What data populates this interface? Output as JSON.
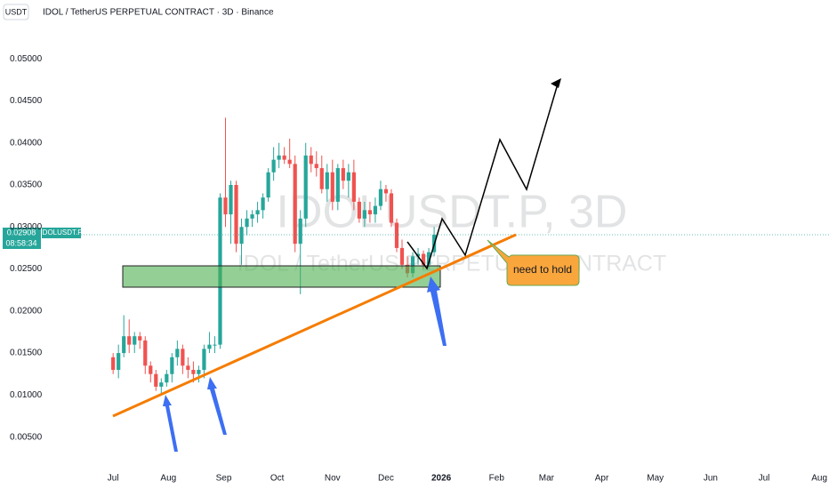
{
  "chart_data": {
    "type": "candlestick",
    "currency": "USDT",
    "title": "IDOL / TetherUS PERPETUAL CONTRACT · 3D · Binance",
    "watermark": "IDOLUSDT.P, 3D",
    "watermark_subtitle": "IDOL / TetherUS PERPETUAL CONTRACT",
    "symbol_label": "IDOLUSDT.P",
    "countdown": "08:58:34",
    "annotation": "need to hold",
    "up_color": "#26a69a",
    "down_color": "#ef5350",
    "x": [
      0,
      1,
      2,
      3,
      4,
      5,
      6,
      7,
      8,
      9,
      10,
      11,
      12,
      13,
      14,
      15,
      16,
      17,
      18,
      19,
      20,
      21,
      22,
      23,
      24,
      25,
      26,
      27,
      28,
      29,
      30,
      31,
      32,
      33,
      34,
      35,
      36,
      37,
      38,
      39,
      40,
      41,
      42,
      43,
      44,
      45,
      46,
      47,
      48,
      49,
      50,
      51,
      52,
      53,
      54,
      55,
      56,
      57,
      58,
      59,
      60
    ],
    "open": [
      0.0145,
      0.013,
      0.015,
      0.017,
      0.016,
      0.017,
      0.0165,
      0.0135,
      0.0125,
      0.011,
      0.0115,
      0.0125,
      0.0145,
      0.0155,
      0.0135,
      0.013,
      0.0125,
      0.013,
      0.0155,
      0.016,
      0.016,
      0.0335,
      0.0315,
      0.035,
      0.028,
      0.03,
      0.031,
      0.0315,
      0.032,
      0.0335,
      0.0365,
      0.038,
      0.0385,
      0.038,
      0.0375,
      0.028,
      0.031,
      0.0385,
      0.0375,
      0.037,
      0.0345,
      0.0365,
      0.033,
      0.037,
      0.0355,
      0.0365,
      0.033,
      0.031,
      0.032,
      0.0315,
      0.0325,
      0.0345,
      0.034,
      0.0305,
      0.0275,
      0.0255,
      0.0245,
      0.0265,
      0.0268,
      0.0255,
      0.027
    ],
    "high": [
      0.015,
      0.016,
      0.0195,
      0.019,
      0.0175,
      0.0175,
      0.017,
      0.014,
      0.013,
      0.012,
      0.013,
      0.015,
      0.0165,
      0.016,
      0.0145,
      0.014,
      0.0135,
      0.016,
      0.0175,
      0.017,
      0.034,
      0.043,
      0.0355,
      0.0355,
      0.031,
      0.032,
      0.032,
      0.033,
      0.034,
      0.037,
      0.0395,
      0.04,
      0.0395,
      0.0405,
      0.0385,
      0.032,
      0.04,
      0.0395,
      0.039,
      0.0385,
      0.0375,
      0.038,
      0.0375,
      0.038,
      0.0375,
      0.038,
      0.0335,
      0.033,
      0.033,
      0.0335,
      0.0355,
      0.035,
      0.0345,
      0.031,
      0.0285,
      0.0265,
      0.027,
      0.0275,
      0.0272,
      0.0275,
      0.03
    ],
    "low": [
      0.0125,
      0.012,
      0.0145,
      0.015,
      0.015,
      0.0155,
      0.0125,
      0.0115,
      0.0105,
      0.01,
      0.011,
      0.0115,
      0.0135,
      0.0125,
      0.012,
      0.0115,
      0.0115,
      0.012,
      0.015,
      0.015,
      0.0155,
      0.03,
      0.028,
      0.027,
      0.0255,
      0.029,
      0.03,
      0.0305,
      0.031,
      0.033,
      0.0355,
      0.037,
      0.0375,
      0.037,
      0.027,
      0.022,
      0.03,
      0.0365,
      0.036,
      0.034,
      0.033,
      0.032,
      0.032,
      0.0345,
      0.0335,
      0.032,
      0.0305,
      0.03,
      0.0305,
      0.0305,
      0.032,
      0.033,
      0.03,
      0.027,
      0.025,
      0.024,
      0.024,
      0.0255,
      0.025,
      0.025,
      0.0265
    ],
    "close": [
      0.013,
      0.015,
      0.017,
      0.016,
      0.017,
      0.0165,
      0.0135,
      0.0125,
      0.011,
      0.0115,
      0.0125,
      0.0145,
      0.0155,
      0.0135,
      0.013,
      0.0125,
      0.013,
      0.0155,
      0.016,
      0.016,
      0.0335,
      0.0315,
      0.035,
      0.028,
      0.03,
      0.031,
      0.0315,
      0.032,
      0.0335,
      0.0365,
      0.038,
      0.0385,
      0.038,
      0.0375,
      0.028,
      0.031,
      0.0385,
      0.0375,
      0.037,
      0.0345,
      0.0365,
      0.033,
      0.037,
      0.0355,
      0.0365,
      0.033,
      0.031,
      0.032,
      0.0315,
      0.0325,
      0.0345,
      0.034,
      0.0305,
      0.0275,
      0.0255,
      0.0245,
      0.0265,
      0.0268,
      0.0255,
      0.027,
      0.02908
    ],
    "xlim": [
      -11.5,
      133.8
    ],
    "xticks": [
      {
        "value": 0,
        "label": "Jul"
      },
      {
        "value": 10.33,
        "label": "Aug"
      },
      {
        "value": 20.67,
        "label": "Sep"
      },
      {
        "value": 30.67,
        "label": "Oct"
      },
      {
        "value": 41,
        "label": "Nov"
      },
      {
        "value": 51,
        "label": "Dec"
      },
      {
        "value": 61.33,
        "label": "2026"
      },
      {
        "value": 71.67,
        "label": "Feb"
      },
      {
        "value": 81,
        "label": "Mar"
      },
      {
        "value": 91.33,
        "label": "Apr"
      },
      {
        "value": 101.33,
        "label": "May"
      },
      {
        "value": 111.67,
        "label": "Jun"
      },
      {
        "value": 121.67,
        "label": "Jul"
      },
      {
        "value": 132,
        "label": "Aug"
      }
    ],
    "ylim": [
      0.002,
      0.057
    ],
    "yticks": [
      {
        "value": 0.005,
        "label": "0.00500"
      },
      {
        "value": 0.01,
        "label": "0.01000"
      },
      {
        "value": 0.015,
        "label": "0.01500"
      },
      {
        "value": 0.02,
        "label": "0.02000"
      },
      {
        "value": 0.025,
        "label": "0.02500"
      },
      {
        "value": 0.03,
        "label": "0.03000"
      },
      {
        "value": 0.035,
        "label": "0.03500"
      },
      {
        "value": 0.04,
        "label": "0.04000"
      },
      {
        "value": 0.045,
        "label": "0.04500"
      },
      {
        "value": 0.05,
        "label": "0.05000"
      }
    ]
  }
}
